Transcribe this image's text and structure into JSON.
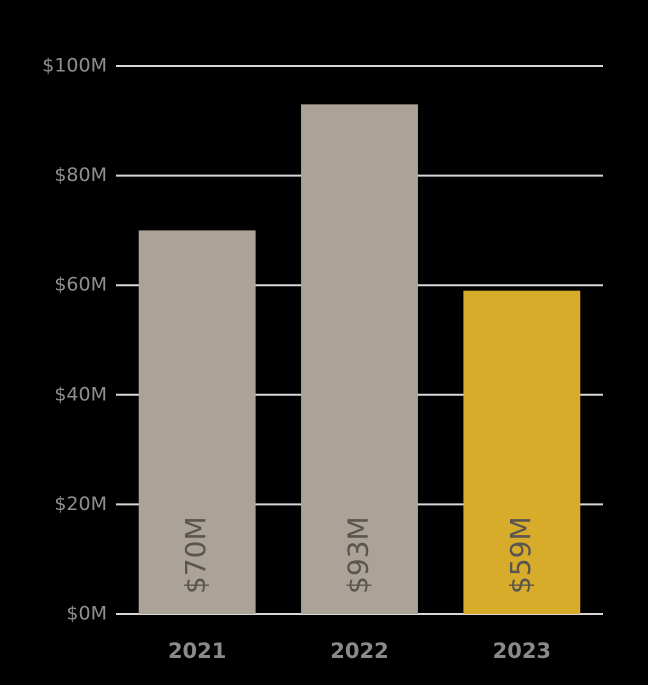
{
  "chart_data": {
    "type": "bar",
    "categories": [
      "2021",
      "2022",
      "2023"
    ],
    "values": [
      70,
      93,
      59
    ],
    "value_labels": [
      "$70M",
      "$93M",
      "$59M"
    ],
    "colors": [
      "#aca398",
      "#aca398",
      "#d6ac2a"
    ],
    "ylim": [
      0,
      100
    ],
    "yticks": [
      {
        "value": 0,
        "label": "$0M"
      },
      {
        "value": 20,
        "label": "$20M"
      },
      {
        "value": 40,
        "label": "$40M"
      },
      {
        "value": 60,
        "label": "$60M"
      },
      {
        "value": 80,
        "label": "$80M"
      },
      {
        "value": 100,
        "label": "$100M"
      }
    ],
    "grid": true
  }
}
